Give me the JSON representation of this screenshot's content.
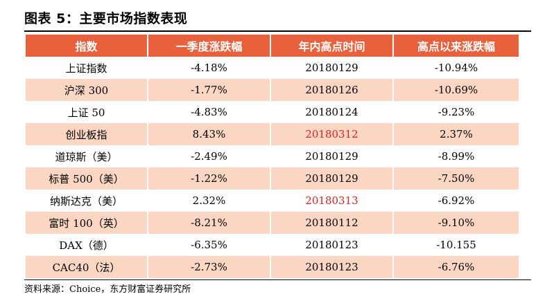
{
  "title": "图表 5：主要市场指数表现",
  "table": {
    "headers": [
      "指数",
      "一季度涨跌幅",
      "年内高点时间",
      "高点以来涨跌幅"
    ],
    "rows": [
      {
        "index": "上证指数",
        "q1_change": "-4.18%",
        "high_date": "20180129",
        "since_high": "-10.94%",
        "date_highlight": false
      },
      {
        "index": "沪深 300",
        "q1_change": "-1.77%",
        "high_date": "20180126",
        "since_high": "-10.69%",
        "date_highlight": false
      },
      {
        "index": "上证 50",
        "q1_change": "-4.83%",
        "high_date": "20180124",
        "since_high": "-9.23%",
        "date_highlight": false
      },
      {
        "index": "创业板指",
        "q1_change": "8.43%",
        "high_date": "20180312",
        "since_high": "2.37%",
        "date_highlight": true
      },
      {
        "index": "道琼斯（美）",
        "q1_change": "-2.49%",
        "high_date": "20180129",
        "since_high": "-8.99%",
        "date_highlight": false
      },
      {
        "index": "标普 500（美）",
        "q1_change": "-1.22%",
        "high_date": "20180129",
        "since_high": "-7.50%",
        "date_highlight": false
      },
      {
        "index": "纳斯达克（美）",
        "q1_change": "2.32%",
        "high_date": "20180313",
        "since_high": "-6.92%",
        "date_highlight": true
      },
      {
        "index": "富时 100（英）",
        "q1_change": "-8.21%",
        "high_date": "20180112",
        "since_high": "-9.10%",
        "date_highlight": false
      },
      {
        "index": "DAX（德）",
        "q1_change": "-6.35%",
        "high_date": "20180123",
        "since_high": "-10.155",
        "date_highlight": false
      },
      {
        "index": "CAC40（法）",
        "q1_change": "-2.73%",
        "high_date": "20180123",
        "since_high": "-6.76%",
        "date_highlight": false
      }
    ]
  },
  "source": "资料来源：Choice，东方财富证券研究所",
  "colors": {
    "header_bg": "#e8603c",
    "stripe_bg": "#fbd6c2",
    "highlight_text": "#e02020"
  }
}
